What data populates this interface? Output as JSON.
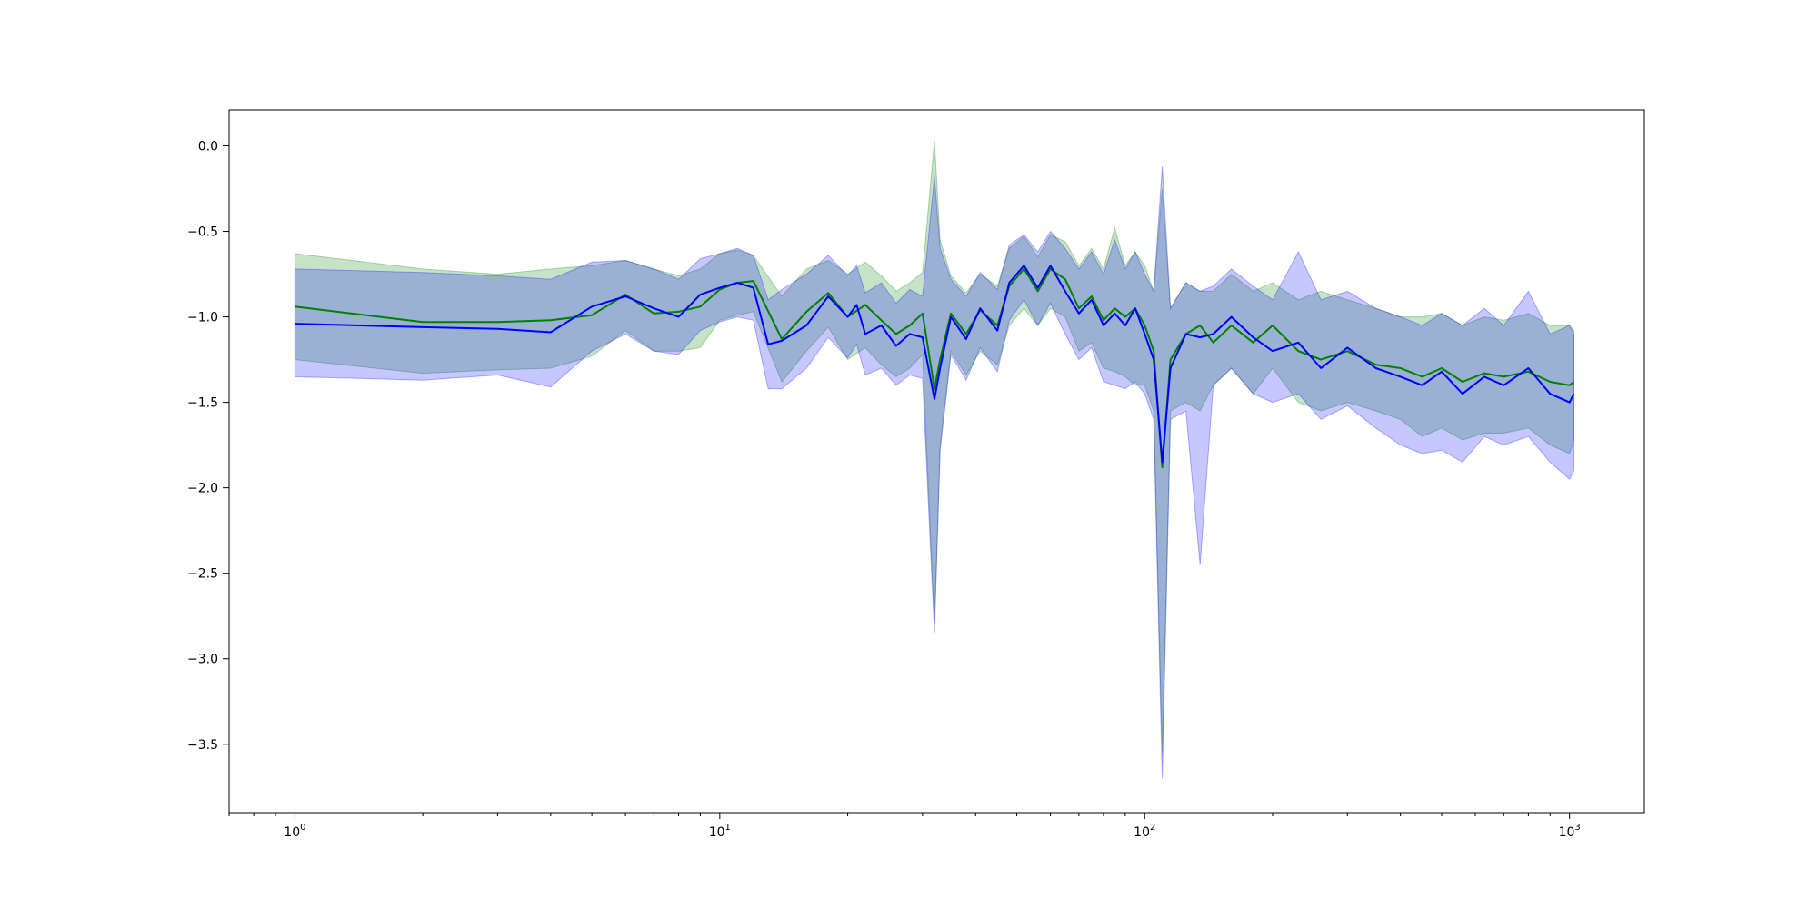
{
  "chart_data": {
    "type": "line",
    "title": "",
    "xlabel": "",
    "ylabel": "",
    "xscale": "log",
    "xlim": [
      0.7,
      1500
    ],
    "ylim": [
      -3.9,
      0.21
    ],
    "grid": false,
    "legend": "none",
    "x_ticks": [
      {
        "value": 1,
        "base": "10",
        "exp": "0"
      },
      {
        "value": 10,
        "base": "10",
        "exp": "1"
      },
      {
        "value": 100,
        "base": "10",
        "exp": "2"
      },
      {
        "value": 1000,
        "base": "10",
        "exp": "3"
      }
    ],
    "y_ticks": [
      {
        "value": 0.0,
        "label": "0.0"
      },
      {
        "value": -0.5,
        "label": "−0.5"
      },
      {
        "value": -1.0,
        "label": "−1.0"
      },
      {
        "value": -1.5,
        "label": "−1.5"
      },
      {
        "value": -2.0,
        "label": "−2.0"
      },
      {
        "value": -2.5,
        "label": "−2.5"
      },
      {
        "value": -3.0,
        "label": "−3.0"
      },
      {
        "value": -3.5,
        "label": "−3.5"
      }
    ],
    "series": [
      {
        "color": "#008000",
        "band_color": "#008000",
        "band_opacity": 0.22,
        "points": [
          [
            1,
            -0.94,
            -0.63,
            -1.25
          ],
          [
            2,
            -1.03,
            -0.72,
            -1.33
          ],
          [
            3,
            -1.03,
            -0.75,
            -1.31
          ],
          [
            4,
            -1.02,
            -0.72,
            -1.3
          ],
          [
            5,
            -0.99,
            -0.7,
            -1.23
          ],
          [
            6,
            -0.87,
            -0.67,
            -1.08
          ],
          [
            7,
            -0.98,
            -0.72,
            -1.2
          ],
          [
            8,
            -0.97,
            -0.76,
            -1.2
          ],
          [
            9,
            -0.94,
            -0.72,
            -1.18
          ],
          [
            10,
            -0.84,
            -0.63,
            -1.02
          ],
          [
            11,
            -0.8,
            -0.61,
            -0.99
          ],
          [
            12,
            -0.79,
            -0.64,
            -0.97
          ],
          [
            14,
            -1.13,
            -0.88,
            -1.38
          ],
          [
            16,
            -0.97,
            -0.72,
            -1.2
          ],
          [
            18,
            -0.86,
            -0.67,
            -1.06
          ],
          [
            20,
            -1.0,
            -0.75,
            -1.25
          ],
          [
            22,
            -0.93,
            -0.68,
            -1.18
          ],
          [
            24,
            -1.02,
            -0.76,
            -1.28
          ],
          [
            26,
            -1.1,
            -0.85,
            -1.35
          ],
          [
            28,
            -1.05,
            -0.8,
            -1.3
          ],
          [
            30,
            -0.98,
            -0.74,
            -1.22
          ],
          [
            32,
            -1.42,
            0.03,
            -2.8
          ],
          [
            33,
            -1.25,
            -0.55,
            -1.75
          ],
          [
            35,
            -0.98,
            -0.76,
            -1.2
          ],
          [
            38,
            -1.1,
            -0.86,
            -1.34
          ],
          [
            41,
            -0.96,
            -0.75,
            -1.2
          ],
          [
            45,
            -1.05,
            -0.82,
            -1.28
          ],
          [
            48,
            -0.82,
            -0.6,
            -1.05
          ],
          [
            52,
            -0.72,
            -0.53,
            -0.95
          ],
          [
            56,
            -0.85,
            -0.65,
            -1.05
          ],
          [
            60,
            -0.72,
            -0.52,
            -0.95
          ],
          [
            65,
            -0.78,
            -0.56,
            -1.0
          ],
          [
            70,
            -0.95,
            -0.7,
            -1.2
          ],
          [
            75,
            -0.88,
            -0.6,
            -1.15
          ],
          [
            80,
            -1.02,
            -0.72,
            -1.3
          ],
          [
            85,
            -0.95,
            -0.48,
            -1.32
          ],
          [
            90,
            -1.0,
            -0.7,
            -1.35
          ],
          [
            95,
            -0.95,
            -0.62,
            -1.4
          ],
          [
            100,
            -1.05,
            -0.7,
            -1.4
          ],
          [
            105,
            -1.2,
            -0.85,
            -1.55
          ],
          [
            110,
            -1.88,
            -0.25,
            -3.55
          ],
          [
            115,
            -1.25,
            -0.95,
            -1.55
          ],
          [
            125,
            -1.1,
            -0.8,
            -1.5
          ],
          [
            135,
            -1.05,
            -0.85,
            -1.55
          ],
          [
            145,
            -1.15,
            -0.85,
            -1.4
          ],
          [
            160,
            -1.05,
            -0.75,
            -1.3
          ],
          [
            180,
            -1.15,
            -0.85,
            -1.45
          ],
          [
            200,
            -1.05,
            -0.8,
            -1.3
          ],
          [
            230,
            -1.2,
            -0.9,
            -1.5
          ],
          [
            260,
            -1.25,
            -0.85,
            -1.55
          ],
          [
            300,
            -1.2,
            -0.9,
            -1.5
          ],
          [
            350,
            -1.28,
            -0.95,
            -1.55
          ],
          [
            400,
            -1.3,
            -1.0,
            -1.6
          ],
          [
            450,
            -1.35,
            -1.0,
            -1.7
          ],
          [
            500,
            -1.3,
            -0.98,
            -1.65
          ],
          [
            560,
            -1.38,
            -1.05,
            -1.72
          ],
          [
            630,
            -1.33,
            -1.0,
            -1.68
          ],
          [
            700,
            -1.35,
            -1.02,
            -1.68
          ],
          [
            800,
            -1.32,
            -0.98,
            -1.65
          ],
          [
            900,
            -1.38,
            -1.05,
            -1.75
          ],
          [
            1000,
            -1.4,
            -1.05,
            -1.8
          ],
          [
            1024,
            -1.38,
            -1.08,
            -1.72
          ]
        ]
      },
      {
        "color": "#0000ff",
        "band_color": "#0000ff",
        "band_opacity": 0.22,
        "points": [
          [
            1,
            -1.04,
            -0.72,
            -1.35
          ],
          [
            2,
            -1.06,
            -0.74,
            -1.37
          ],
          [
            3,
            -1.07,
            -0.76,
            -1.34
          ],
          [
            4,
            -1.09,
            -0.78,
            -1.41
          ],
          [
            5,
            -0.94,
            -0.68,
            -1.2
          ],
          [
            6,
            -0.88,
            -0.67,
            -1.1
          ],
          [
            7,
            -0.95,
            -0.72,
            -1.2
          ],
          [
            8,
            -1.0,
            -0.78,
            -1.22
          ],
          [
            9,
            -0.87,
            -0.66,
            -1.08
          ],
          [
            10,
            -0.83,
            -0.63,
            -1.03
          ],
          [
            11,
            -0.8,
            -0.6,
            -1.0
          ],
          [
            12,
            -0.83,
            -0.64,
            -1.02
          ],
          [
            13,
            -1.16,
            -0.9,
            -1.42
          ],
          [
            14,
            -1.14,
            -0.84,
            -1.42
          ],
          [
            16,
            -1.05,
            -0.75,
            -1.3
          ],
          [
            18,
            -0.88,
            -0.64,
            -1.12
          ],
          [
            20,
            -1.0,
            -0.76,
            -1.24
          ],
          [
            21,
            -0.93,
            -0.7,
            -1.16
          ],
          [
            22,
            -1.1,
            -0.86,
            -1.34
          ],
          [
            24,
            -1.05,
            -0.8,
            -1.3
          ],
          [
            26,
            -1.17,
            -0.92,
            -1.4
          ],
          [
            28,
            -1.1,
            -0.84,
            -1.34
          ],
          [
            30,
            -1.12,
            -0.88,
            -1.36
          ],
          [
            32,
            -1.48,
            -0.18,
            -2.85
          ],
          [
            33,
            -1.3,
            -0.6,
            -1.78
          ],
          [
            35,
            -1.0,
            -0.78,
            -1.22
          ],
          [
            38,
            -1.13,
            -0.88,
            -1.37
          ],
          [
            41,
            -0.95,
            -0.74,
            -1.18
          ],
          [
            45,
            -1.08,
            -0.84,
            -1.32
          ],
          [
            48,
            -0.8,
            -0.58,
            -1.02
          ],
          [
            52,
            -0.7,
            -0.52,
            -0.9
          ],
          [
            56,
            -0.83,
            -0.62,
            -1.05
          ],
          [
            60,
            -0.7,
            -0.5,
            -0.92
          ],
          [
            65,
            -0.85,
            -0.6,
            -1.1
          ],
          [
            70,
            -0.98,
            -0.72,
            -1.25
          ],
          [
            75,
            -0.9,
            -0.62,
            -1.18
          ],
          [
            80,
            -1.05,
            -0.75,
            -1.38
          ],
          [
            85,
            -0.98,
            -0.55,
            -1.4
          ],
          [
            90,
            -1.05,
            -0.72,
            -1.42
          ],
          [
            95,
            -0.95,
            -0.62,
            -1.38
          ],
          [
            100,
            -1.1,
            -0.75,
            -1.45
          ],
          [
            105,
            -1.25,
            -0.85,
            -1.6
          ],
          [
            110,
            -1.85,
            -0.12,
            -3.7
          ],
          [
            115,
            -1.3,
            -0.95,
            -1.6
          ],
          [
            125,
            -1.1,
            -0.8,
            -1.55
          ],
          [
            135,
            -1.12,
            -0.85,
            -2.45
          ],
          [
            145,
            -1.1,
            -0.82,
            -1.4
          ],
          [
            160,
            -1.0,
            -0.72,
            -1.3
          ],
          [
            180,
            -1.12,
            -0.82,
            -1.45
          ],
          [
            200,
            -1.2,
            -0.9,
            -1.5
          ],
          [
            230,
            -1.15,
            -0.62,
            -1.45
          ],
          [
            260,
            -1.3,
            -0.9,
            -1.6
          ],
          [
            300,
            -1.18,
            -0.85,
            -1.52
          ],
          [
            350,
            -1.3,
            -0.95,
            -1.65
          ],
          [
            400,
            -1.35,
            -1.0,
            -1.75
          ],
          [
            450,
            -1.4,
            -1.05,
            -1.8
          ],
          [
            500,
            -1.32,
            -0.98,
            -1.78
          ],
          [
            560,
            -1.45,
            -1.05,
            -1.85
          ],
          [
            630,
            -1.35,
            -0.95,
            -1.7
          ],
          [
            700,
            -1.4,
            -1.05,
            -1.75
          ],
          [
            800,
            -1.3,
            -0.85,
            -1.7
          ],
          [
            900,
            -1.45,
            -1.1,
            -1.85
          ],
          [
            1000,
            -1.5,
            -1.05,
            -1.95
          ],
          [
            1024,
            -1.45,
            -1.1,
            -1.9
          ]
        ]
      }
    ]
  }
}
